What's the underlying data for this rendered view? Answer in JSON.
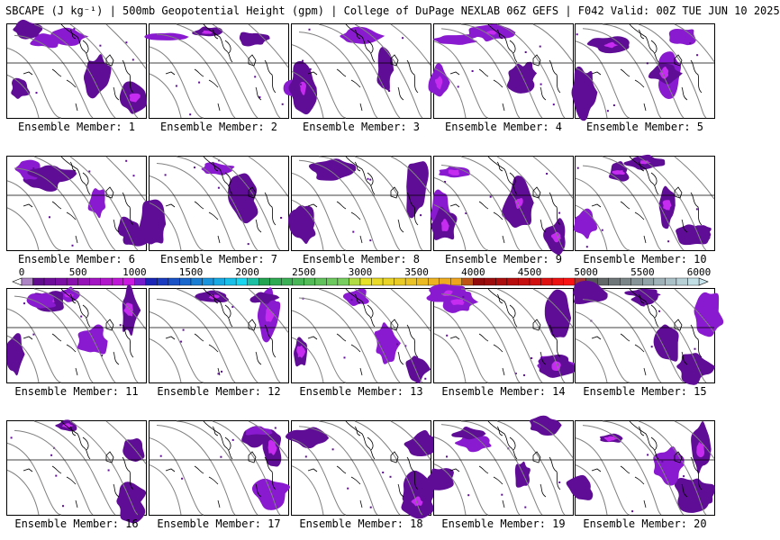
{
  "title": "SBCAPE (J kg⁻¹) | 500mb Geopotential Height (gpm) | College of DuPage NEXLAB 06Z GEFS | F042 Valid: 00Z TUE JUN 10 2025",
  "colorbar": {
    "min": 0,
    "max": 6000,
    "step": 100,
    "tick_labels": [
      "0",
      "500",
      "1000",
      "1500",
      "2000",
      "2500",
      "3000",
      "3500",
      "4000",
      "4500",
      "5000",
      "5500",
      "6000"
    ],
    "color_stops": [
      {
        "v": 0,
        "c": "#ffffff"
      },
      {
        "v": 100,
        "c": "#5a0a8a"
      },
      {
        "v": 1000,
        "c": "#d21ae6"
      },
      {
        "v": 1100,
        "c": "#1a1ab4"
      },
      {
        "v": 2000,
        "c": "#18e0f4"
      },
      {
        "v": 2100,
        "c": "#1ea050"
      },
      {
        "v": 2900,
        "c": "#7ed260"
      },
      {
        "v": 3000,
        "c": "#e6e628"
      },
      {
        "v": 3900,
        "c": "#f0a020"
      },
      {
        "v": 4000,
        "c": "#8c0a0a"
      },
      {
        "v": 4900,
        "c": "#ff1414"
      },
      {
        "v": 5000,
        "c": "#505050"
      },
      {
        "v": 6000,
        "c": "#c8e6ee"
      }
    ]
  },
  "fill_colors": {
    "cape_low": "#5f0d96",
    "cape_mid": "#8a1ad0",
    "cape_high": "#c62cf0",
    "contour": "#808080",
    "geography": "#000000"
  },
  "members_top": [
    {
      "caption": "Ensemble Member: 1"
    },
    {
      "caption": "Ensemble Member: 2"
    },
    {
      "caption": "Ensemble Member: 3"
    },
    {
      "caption": "Ensemble Member: 4"
    },
    {
      "caption": "Ensemble Member: 5"
    },
    {
      "caption": "Ensemble Member: 6"
    },
    {
      "caption": "Ensemble Member: 7"
    },
    {
      "caption": "Ensemble Member: 8"
    },
    {
      "caption": "Ensemble Member: 9"
    },
    {
      "caption": "Ensemble Member: 10"
    }
  ],
  "members_bottom": [
    {
      "caption": "Ensemble Member: 11"
    },
    {
      "caption": "Ensemble Member: 12"
    },
    {
      "caption": "Ensemble Member: 13"
    },
    {
      "caption": "Ensemble Member: 14"
    },
    {
      "caption": "Ensemble Member: 15"
    },
    {
      "caption": "Ensemble Member: 16"
    },
    {
      "caption": "Ensemble Member: 17"
    },
    {
      "caption": "Ensemble Member: 18"
    },
    {
      "caption": "Ensemble Member: 19"
    },
    {
      "caption": "Ensemble Member: 20"
    }
  ]
}
